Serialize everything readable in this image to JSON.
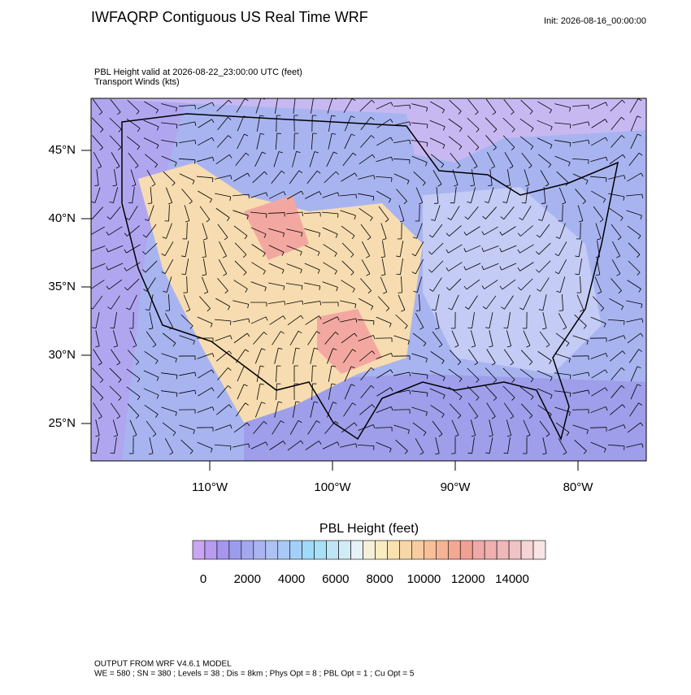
{
  "header": {
    "title": "IWFAQRP Contiguous US Real Time WRF",
    "init": "Init: 2026-08-16_00:00:00",
    "field_line": "PBL Height valid at 2026-08-22_23:00:00 UTC   (feet)",
    "wind_line": "Transport Winds   (kts)"
  },
  "map": {
    "lat_labels": [
      "45°N",
      "40°N",
      "35°N",
      "30°N",
      "25°N"
    ],
    "lon_labels": [
      "110°W",
      "100°W",
      "90°W",
      "80°W"
    ]
  },
  "colorbar": {
    "title": "PBL Height  (feet)",
    "colors": [
      "#c9a6f2",
      "#b89cf0",
      "#a596ee",
      "#9a9cec",
      "#a3a8ee",
      "#a9b4f0",
      "#aec2f2",
      "#a9c8f6",
      "#a2d0f8",
      "#9fdaf8",
      "#a8e0f6",
      "#bfe4f4",
      "#d2ecf6",
      "#e6f2f8",
      "#f6f0d8",
      "#f8ecc0",
      "#f8e2b0",
      "#f8d8a8",
      "#f8cca0",
      "#f8c098",
      "#f6b494",
      "#f4a892",
      "#f2a094",
      "#f0a8a8",
      "#f0b0b0",
      "#eeb8b8",
      "#f0c4c4",
      "#f4d4d4",
      "#f8e4e4"
    ],
    "labels": [
      0,
      2000,
      4000,
      6000,
      8000,
      10000,
      12000,
      14000
    ]
  },
  "footer": {
    "line1": "OUTPUT FROM WRF V4.6.1 MODEL",
    "line2": "WE = 580 ; SN = 380 ; Levels = 38 ; Dis = 8km ; Phys Opt = 8 ; PBL Opt = 1 ; Cu Opt = 5"
  }
}
